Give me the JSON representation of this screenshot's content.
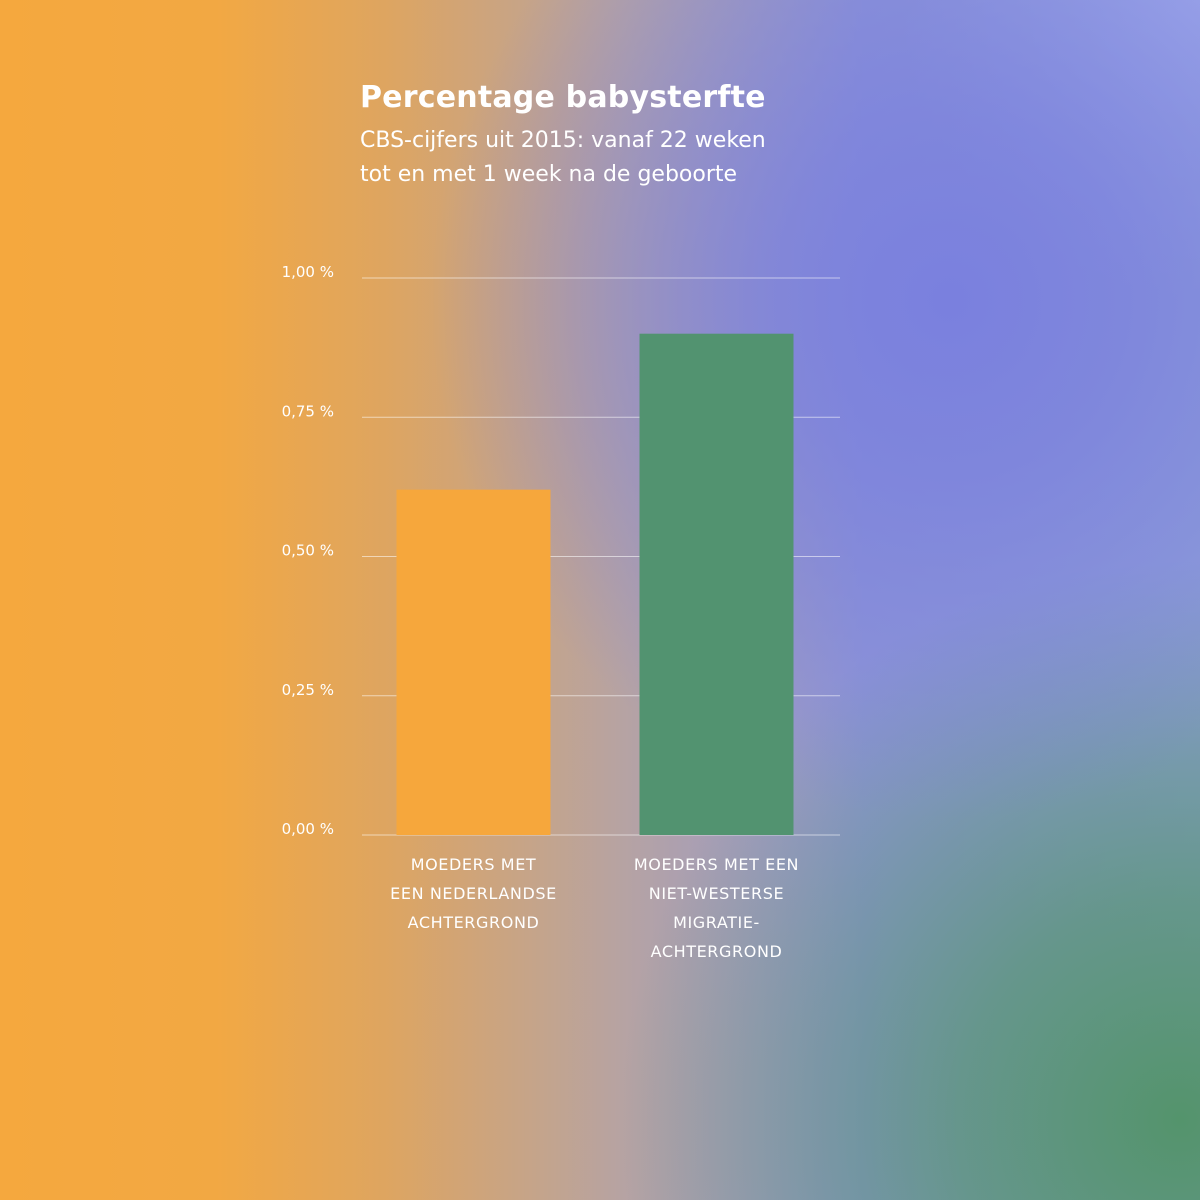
{
  "chart_data": {
    "type": "bar",
    "title": "Percentage babysterfte",
    "subtitle_lines": [
      "CBS-cijfers uit 2015: vanaf 22 weken",
      "tot en met 1 week na de geboorte"
    ],
    "categories": [
      [
        "MOEDERS MET",
        "EEN NEDERLANDSE",
        "ACHTERGROND"
      ],
      [
        "MOEDERS MET EEN",
        "NIET-WESTERSE",
        "MIGRATIE-",
        "ACHTERGROND"
      ]
    ],
    "values": [
      0.62,
      0.9
    ],
    "colors": [
      "#f6a73c",
      "#529370"
    ],
    "ylim": [
      0,
      1.0
    ],
    "yticks": [
      0,
      0.25,
      0.5,
      0.75,
      1.0
    ],
    "ytick_labels": [
      "0,00 %",
      "0,25 %",
      "0,50 %",
      "0,75 %",
      "1,00 %"
    ],
    "grid": true,
    "legend": "none",
    "xlabel": "",
    "ylabel": ""
  }
}
